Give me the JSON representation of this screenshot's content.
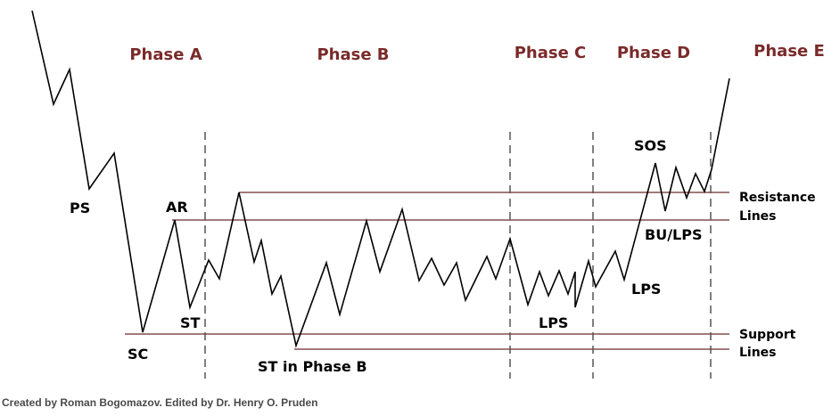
{
  "colors": {
    "phase_label": "#7a2a2a",
    "horizontal_line": "#6b2a2a",
    "price_line": "#000000",
    "divider": "#555555",
    "credit_text": "#4a4a4a",
    "background": "#ffffff"
  },
  "phases": [
    "Phase A",
    "Phase B",
    "Phase C",
    "Phase D",
    "Phase E"
  ],
  "events": {
    "ps": "PS",
    "sc": "SC",
    "ar": "AR",
    "st": "ST",
    "st_phase_b": "ST in Phase B",
    "lps_c": "LPS",
    "lps_d": "LPS",
    "sos": "SOS",
    "bu_lps": "BU/LPS"
  },
  "side_labels": {
    "resistance_1": "Resistance",
    "resistance_2": "Lines",
    "support_1": "Support",
    "support_2": "Lines"
  },
  "credit": "Created by Roman Bogomazov. Edited by Dr. Henry O. Pruden"
}
